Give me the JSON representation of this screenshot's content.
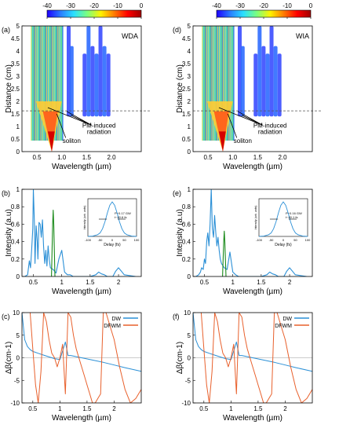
{
  "figure": {
    "colorbar": {
      "ticks": [
        "-40",
        "-30",
        "-20",
        "-10",
        "0"
      ],
      "stops": [
        "#1e00ff",
        "#2a7cff",
        "#2ae0ff",
        "#7dff7d",
        "#fff200",
        "#ff7a00",
        "#ff0000",
        "#a00000"
      ]
    }
  },
  "chart_data": [
    {
      "id": "a",
      "panel_label": "(a)",
      "type": "heatmap",
      "tag": "WDA",
      "xlabel": "Wavelength (µm)",
      "ylabel": "Distance (cm)",
      "xlim": [
        0.2,
        2.6
      ],
      "ylim": [
        0,
        5
      ],
      "xticks": [
        "0.5",
        "1.0",
        "1.5",
        "2.0"
      ],
      "xtick_values": [
        0.5,
        1.0,
        1.5,
        2.0
      ],
      "yticks": [
        "0",
        "0.5",
        "1",
        "1.5",
        "2",
        "2.5",
        "3",
        "3.5",
        "4",
        "4.5",
        "5"
      ],
      "ytick_values": [
        0,
        0.5,
        1,
        1.5,
        2,
        2.5,
        3,
        3.5,
        4,
        4.5,
        5
      ],
      "annotations": [
        "soliton",
        "PM-induced",
        "radiation"
      ],
      "reference_line_distance": 1.62
    },
    {
      "id": "d",
      "panel_label": "(d)",
      "type": "heatmap",
      "tag": "WIA",
      "xlabel": "Wavelength (µm)",
      "ylabel": "Distance (cm)",
      "xlim": [
        0.2,
        2.6
      ],
      "ylim": [
        0,
        5
      ],
      "xticks": [
        "0.5",
        "1.0",
        "1.5",
        "2.0"
      ],
      "xtick_values": [
        0.5,
        1.0,
        1.5,
        2.0
      ],
      "yticks": [
        "0",
        "0.5",
        "1",
        "1.5",
        "2",
        "2.5",
        "3",
        "3.5",
        "4",
        "4.5",
        "5"
      ],
      "ytick_values": [
        0,
        0.5,
        1,
        1.5,
        2,
        2.5,
        3,
        3.5,
        4,
        4.5,
        5
      ],
      "annotations": [
        "soliton",
        "PM-induced",
        "radiation"
      ],
      "reference_line_distance": 1.62
    },
    {
      "id": "b",
      "panel_label": "(b)",
      "type": "line",
      "xlabel": "Wavelength (µm)",
      "ylabel": "Intensity (a.u)",
      "xlim": [
        0.3,
        2.4
      ],
      "ylim": [
        0,
        1
      ],
      "xticks": [
        "0.5",
        "1",
        "1.5",
        "2"
      ],
      "xtick_values": [
        0.5,
        1,
        1.5,
        2
      ],
      "yticks": [
        "0",
        "0.2",
        "0.4",
        "0.6",
        "0.8",
        "1"
      ],
      "ytick_values": [
        0,
        0.2,
        0.4,
        0.6,
        0.8,
        1
      ],
      "series": [
        {
          "color": "#2a8fd6",
          "x": [
            0.35,
            0.4,
            0.43,
            0.45,
            0.47,
            0.49,
            0.5,
            0.52,
            0.53,
            0.55,
            0.57,
            0.58,
            0.6,
            0.62,
            0.64,
            0.66,
            0.68,
            0.7,
            0.72,
            0.74,
            0.76,
            0.78,
            0.8,
            0.85,
            0.9,
            0.95,
            1.0,
            1.05,
            1.1,
            1.15,
            1.2,
            1.3,
            1.4,
            1.5,
            1.6,
            1.65,
            1.7,
            1.75,
            1.8,
            1.9,
            1.95,
            2.0,
            2.05,
            2.1,
            2.3
          ],
          "y": [
            0.0,
            0.02,
            0.18,
            0.1,
            0.3,
            0.55,
            1.0,
            0.6,
            0.15,
            0.58,
            0.4,
            0.2,
            0.62,
            0.6,
            0.45,
            0.65,
            0.35,
            0.15,
            0.3,
            0.12,
            0.35,
            0.2,
            0.1,
            0.08,
            0.04,
            0.2,
            0.3,
            0.05,
            0.02,
            0.02,
            0.0,
            0.0,
            0.0,
            0.0,
            0.02,
            0.05,
            0.03,
            0.02,
            0.0,
            0.0,
            0.06,
            0.1,
            0.06,
            0.02,
            0.0
          ]
        },
        {
          "color": "#1a8a1a",
          "x": [
            0.82,
            0.84,
            0.85,
            0.86,
            0.88
          ],
          "y": [
            0.0,
            0.6,
            0.76,
            0.6,
            0.0
          ]
        }
      ],
      "inset": {
        "xlabel": "Delay (fs)",
        "ylabel": "Intensity (arb. units)",
        "xlim": [
          -100,
          100
        ],
        "ylim": [
          0,
          1
        ],
        "xticks": [
          "-100",
          "-50",
          "0",
          "50",
          "100"
        ],
        "xtick_values": [
          -100,
          -50,
          0,
          50,
          100
        ],
        "annotations": [
          "P~0.17 GW",
          "t~40.6 fs"
        ],
        "series": [
          {
            "color": "#2a8fd6",
            "x": [
              -100,
              -80,
              -60,
              -50,
              -40,
              -30,
              -20,
              -10,
              0,
              10,
              20,
              30,
              40,
              50,
              60,
              80,
              100
            ],
            "y": [
              0.0,
              0.01,
              0.05,
              0.1,
              0.22,
              0.42,
              0.68,
              0.9,
              1.0,
              0.9,
              0.68,
              0.42,
              0.22,
              0.1,
              0.05,
              0.01,
              0.0
            ]
          }
        ]
      }
    },
    {
      "id": "e",
      "panel_label": "(e)",
      "type": "line",
      "xlabel": "Wavelength (µm)",
      "ylabel": "Intensity (a.u)",
      "xlim": [
        0.3,
        2.4
      ],
      "ylim": [
        0,
        1
      ],
      "xticks": [
        "0.5",
        "1",
        "1.5",
        "2"
      ],
      "xtick_values": [
        0.5,
        1,
        1.5,
        2
      ],
      "yticks": [
        "0",
        "0.2",
        "0.4",
        "0.6",
        "0.8",
        "1"
      ],
      "ytick_values": [
        0,
        0.2,
        0.4,
        0.6,
        0.8,
        1
      ],
      "series": [
        {
          "color": "#2a8fd6",
          "x": [
            0.35,
            0.4,
            0.43,
            0.45,
            0.48,
            0.5,
            0.52,
            0.54,
            0.56,
            0.58,
            0.6,
            0.62,
            0.64,
            0.66,
            0.68,
            0.7,
            0.72,
            0.74,
            0.76,
            0.78,
            0.8,
            0.85,
            0.9,
            0.95,
            1.0,
            1.05,
            1.1,
            1.2,
            1.3,
            1.4,
            1.5,
            1.6,
            1.65,
            1.7,
            1.75,
            1.8,
            1.9,
            1.95,
            2.0,
            2.05,
            2.1,
            2.3
          ],
          "y": [
            0.0,
            0.02,
            0.05,
            0.1,
            0.08,
            0.2,
            0.15,
            0.4,
            0.5,
            0.35,
            0.6,
            1.0,
            0.55,
            0.45,
            0.7,
            0.5,
            0.35,
            0.45,
            0.3,
            0.2,
            0.15,
            0.1,
            0.08,
            0.28,
            0.05,
            0.02,
            0.0,
            0.0,
            0.0,
            0.0,
            0.0,
            0.02,
            0.05,
            0.03,
            0.02,
            0.0,
            0.0,
            0.06,
            0.1,
            0.06,
            0.02,
            0.0
          ]
        },
        {
          "color": "#1a8a1a",
          "x": [
            0.82,
            0.84,
            0.85,
            0.86,
            0.88
          ],
          "y": [
            0.0,
            0.4,
            0.52,
            0.4,
            0.0
          ]
        }
      ],
      "inset": {
        "xlabel": "Delay (fs)",
        "ylabel": "Intensity (arb. units)",
        "xlim": [
          -100,
          100
        ],
        "ylim": [
          0,
          1
        ],
        "xticks": [
          "-100",
          "-50",
          "0",
          "50",
          "100"
        ],
        "xtick_values": [
          -100,
          -50,
          0,
          50,
          100
        ],
        "annotations": [
          "P~0.16 GW",
          "t~40.1 fs"
        ],
        "series": [
          {
            "color": "#2a8fd6",
            "x": [
              -100,
              -80,
              -60,
              -50,
              -40,
              -30,
              -20,
              -10,
              0,
              10,
              20,
              30,
              40,
              50,
              60,
              80,
              100
            ],
            "y": [
              0.0,
              0.01,
              0.05,
              0.1,
              0.22,
              0.42,
              0.68,
              0.9,
              1.0,
              0.9,
              0.68,
              0.42,
              0.22,
              0.1,
              0.05,
              0.01,
              0.0
            ]
          }
        ]
      }
    },
    {
      "id": "c",
      "panel_label": "(c)",
      "type": "line",
      "xlabel": "Wavelength (µm)",
      "ylabel": "Δβ(cm-1)",
      "xlim": [
        0.3,
        2.5
      ],
      "ylim": [
        -10,
        10
      ],
      "xticks": [
        "0.5",
        "1",
        "1.5",
        "2"
      ],
      "xtick_values": [
        0.5,
        1,
        1.5,
        2
      ],
      "yticks": [
        "-10",
        "-5",
        "0",
        "5",
        "10"
      ],
      "ytick_values": [
        -10,
        -5,
        0,
        5,
        10
      ],
      "legend_position": "top-right",
      "series": [
        {
          "name": "DW",
          "color": "#2a8fd6",
          "x": [
            0.3,
            0.35,
            0.4,
            0.45,
            0.5,
            0.6,
            0.7,
            0.8,
            0.9,
            1.0,
            1.05,
            1.1,
            1.15,
            1.2,
            1.4,
            1.6,
            1.8,
            2.0,
            2.2,
            2.5
          ],
          "y": [
            10,
            4,
            2.5,
            1.8,
            1.4,
            1.0,
            0.6,
            0.2,
            -0.2,
            -0.4,
            1.5,
            3.5,
            0.5,
            0.5,
            0.0,
            -0.5,
            -1.0,
            -1.6,
            -2.2,
            -3.0
          ]
        },
        {
          "name": "DFWM",
          "color": "#e8602c",
          "x": [
            0.45,
            0.5,
            0.55,
            0.6,
            0.65,
            0.7,
            0.75,
            0.8,
            0.85,
            0.9,
            0.95,
            1.0,
            1.05,
            1.1,
            1.15,
            1.2,
            1.25,
            1.3,
            1.35,
            1.4,
            1.45,
            1.5,
            1.55,
            1.6,
            1.65,
            1.7,
            1.75,
            1.8,
            1.85,
            1.9,
            2.0,
            2.1,
            2.2,
            2.3,
            2.4,
            2.5
          ],
          "y": [
            10,
            2,
            -6,
            -10,
            -3,
            10,
            8,
            4,
            1,
            0,
            -2,
            0,
            3,
            -8,
            10,
            9,
            5,
            2,
            0,
            -2,
            -4,
            -6,
            -8,
            -10,
            -10,
            -9,
            -8,
            10,
            10,
            8,
            4,
            -2,
            -7,
            -10,
            -9,
            -7
          ]
        }
      ]
    },
    {
      "id": "f",
      "panel_label": "(f)",
      "type": "line",
      "xlabel": "Wavelength (µm)",
      "ylabel": "Δβ(cm-1)",
      "xlim": [
        0.3,
        2.5
      ],
      "ylim": [
        -10,
        10
      ],
      "xticks": [
        "0.5",
        "1",
        "1.5",
        "2"
      ],
      "xtick_values": [
        0.5,
        1,
        1.5,
        2
      ],
      "yticks": [
        "-10",
        "-5",
        "0",
        "5",
        "10"
      ],
      "ytick_values": [
        -10,
        -5,
        0,
        5,
        10
      ],
      "legend_position": "top-right",
      "series": [
        {
          "name": "DW",
          "color": "#2a8fd6",
          "x": [
            0.3,
            0.35,
            0.4,
            0.45,
            0.5,
            0.6,
            0.7,
            0.8,
            0.9,
            1.0,
            1.05,
            1.1,
            1.15,
            1.2,
            1.4,
            1.6,
            1.8,
            2.0,
            2.2,
            2.5
          ],
          "y": [
            10,
            4,
            2.5,
            1.8,
            1.4,
            1.0,
            0.6,
            0.2,
            -0.2,
            -0.4,
            1.5,
            3.5,
            0.5,
            0.5,
            0.0,
            -0.5,
            -1.0,
            -1.6,
            -2.2,
            -3.0
          ]
        },
        {
          "name": "DFWM",
          "color": "#e8602c",
          "x": [
            0.45,
            0.5,
            0.55,
            0.6,
            0.65,
            0.7,
            0.75,
            0.8,
            0.85,
            0.9,
            0.95,
            1.0,
            1.05,
            1.1,
            1.15,
            1.2,
            1.25,
            1.3,
            1.35,
            1.4,
            1.45,
            1.5,
            1.55,
            1.6,
            1.65,
            1.7,
            1.75,
            1.8,
            1.85,
            1.9,
            2.0,
            2.1,
            2.2,
            2.3,
            2.4,
            2.5
          ],
          "y": [
            10,
            2,
            -6,
            -10,
            -3,
            10,
            8,
            4,
            1,
            0,
            -2,
            0,
            3,
            -8,
            10,
            9,
            5,
            2,
            0,
            -2,
            -4,
            -6,
            -8,
            -10,
            -10,
            -9,
            -8,
            10,
            10,
            8,
            4,
            -2,
            -7,
            -10,
            -9,
            -7
          ]
        }
      ]
    }
  ]
}
